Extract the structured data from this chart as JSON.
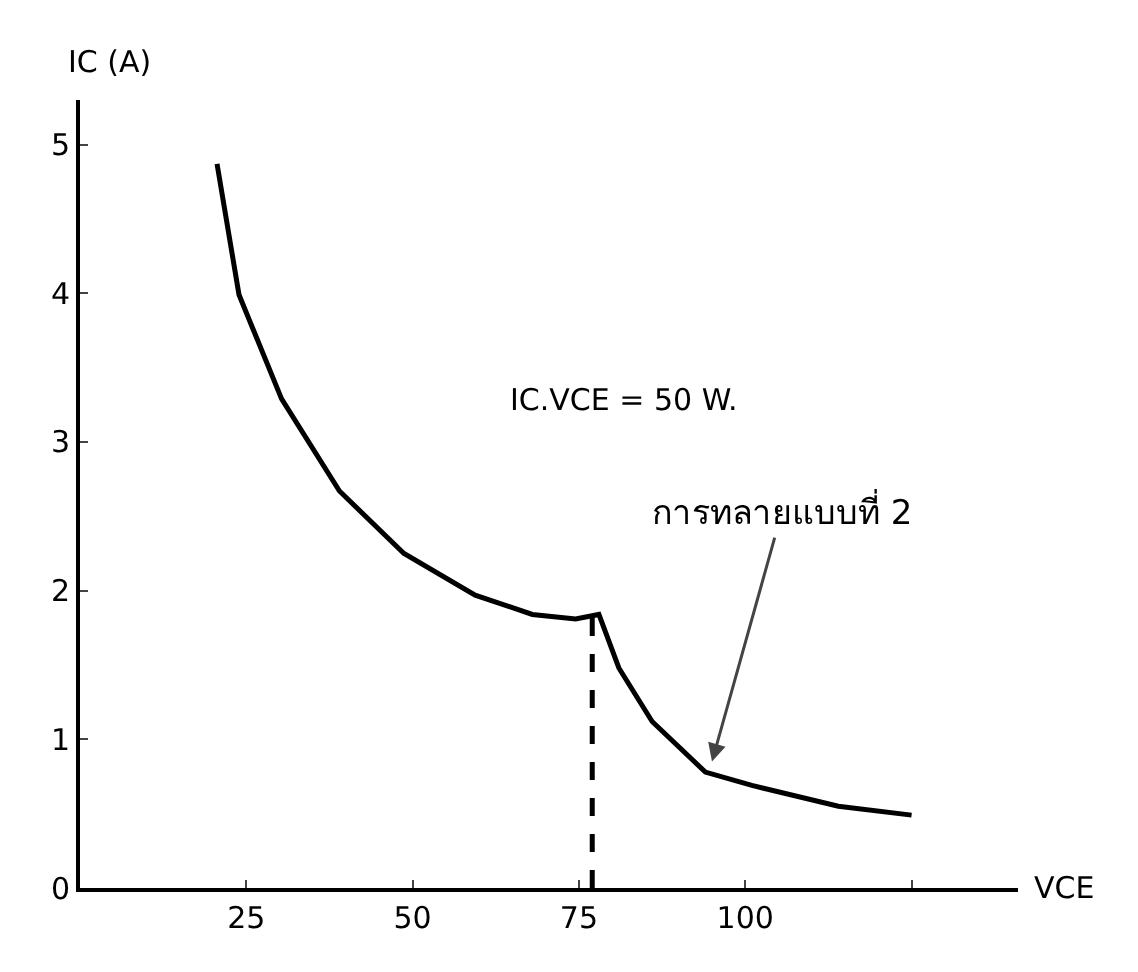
{
  "chart_data": {
    "type": "line",
    "xlabel": "VCE",
    "ylabel": "IC (A)",
    "xlim": [
      0,
      141
    ],
    "ylim": [
      0,
      5.3
    ],
    "xticks": [
      25,
      50,
      75,
      100,
      {
        "value": 125,
        "label": null
      }
    ],
    "yticks": [
      0,
      1,
      2,
      3,
      4,
      5
    ],
    "grid": false,
    "marker": "none",
    "series": [
      {
        "color": "#000000",
        "x": [
          20.6,
          23.9,
          30.3,
          39,
          48.7,
          59.4,
          68,
          74.5,
          78,
          81,
          86,
          94,
          101,
          114,
          125
        ],
        "values": [
          4.87,
          3.99,
          3.29,
          2.67,
          2.25,
          1.97,
          1.84,
          1.81,
          1.84,
          1.48,
          1.12,
          0.78,
          0.69,
          0.55,
          0.49
        ]
      },
      {
        "color": "#000000",
        "line_style": "dashed",
        "x": [
          77,
          77
        ],
        "values": [
          0,
          1.84
        ]
      }
    ],
    "annotations": [
      "IC.VCE = 50 W.",
      {
        "text": "การทลายแบบที่ 2",
        "x": 95,
        "y": 0.85
      }
    ]
  }
}
